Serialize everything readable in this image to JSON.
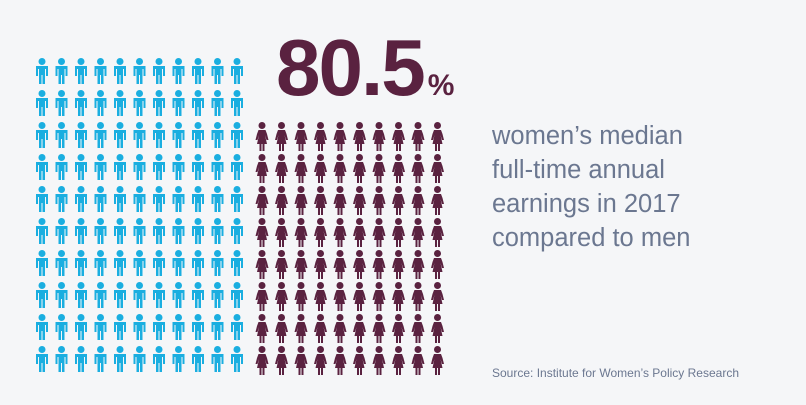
{
  "chart_data": {
    "type": "pictograph",
    "value": 80.5,
    "value_label": "80.5",
    "unit": "%",
    "description_lines": [
      "women’s median",
      "full-time annual",
      "earnings in 2017",
      "compared to men"
    ],
    "source": "Source: Institute for Women’s Policy Research",
    "colors": {
      "men": "#1aaee0",
      "women": "#5a2240"
    }
  }
}
